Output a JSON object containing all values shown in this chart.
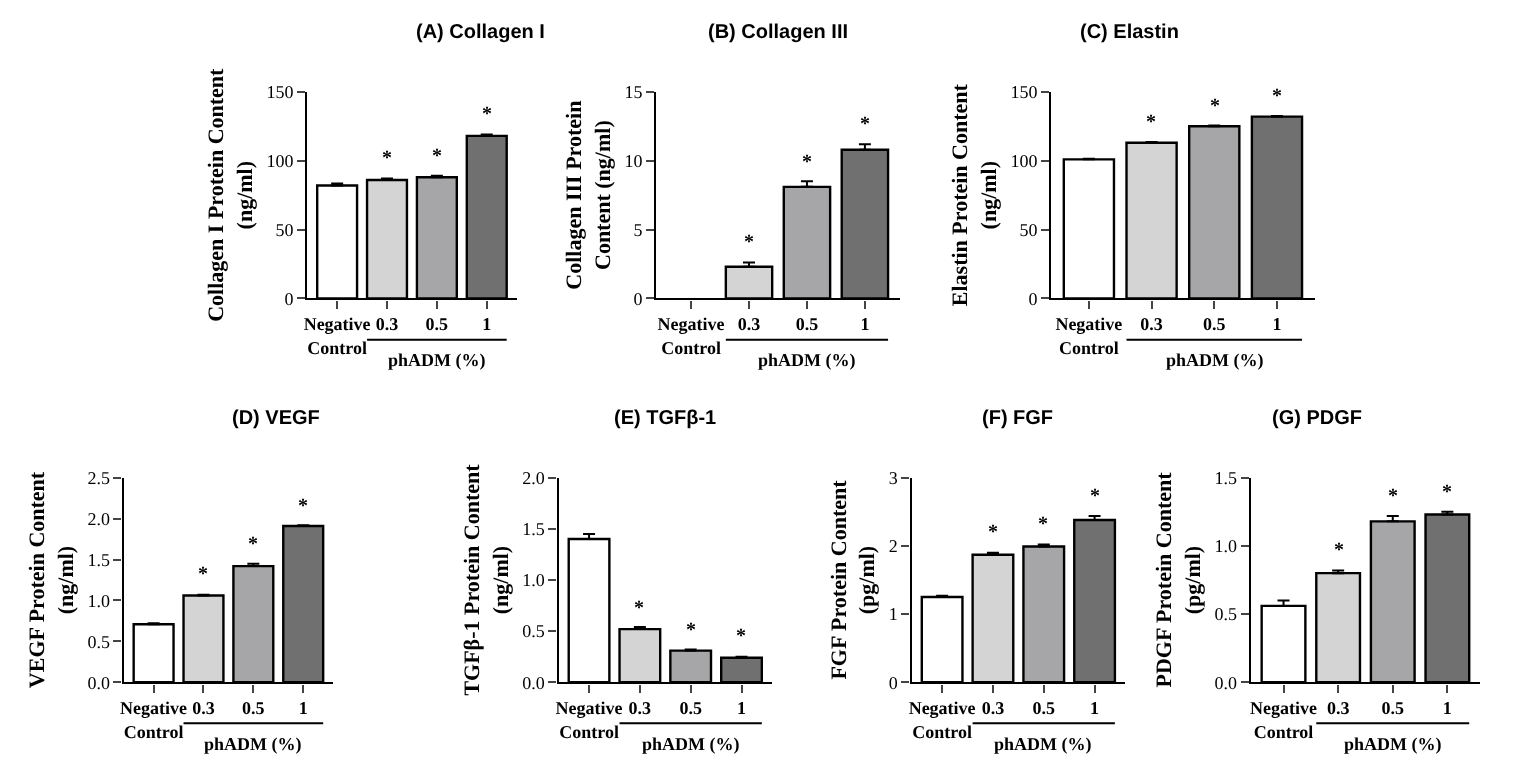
{
  "chart_data": [
    {
      "type": "bar",
      "title": "(A) Collagen I",
      "ylabel": "Collagen I Protein Content\n(ng/ml)",
      "xlabel": "phADM (%)",
      "categories": [
        "Negative\nControl",
        "0.3",
        "0.5",
        "1"
      ],
      "values": [
        82,
        86,
        88,
        118
      ],
      "errors": [
        1.5,
        1,
        1,
        1
      ],
      "colors": [
        "#ffffff",
        "#d4d4d4",
        "#a6a6a8",
        "#707070"
      ],
      "ylim": [
        0,
        150
      ],
      "yticks": [
        0,
        50,
        100,
        150
      ],
      "annotations": [
        {
          "text": "*",
          "x": "0.3",
          "y": 87
        },
        {
          "text": "*",
          "x": "0.5",
          "y": 89
        },
        {
          "text": "*",
          "x": "1",
          "y": 119
        }
      ]
    },
    {
      "type": "bar",
      "title": "(B) Collagen III",
      "ylabel": "Collagen III Protein\nContent (ng/ml)",
      "xlabel": "phADM (%)",
      "categories": [
        "Negative\nControl",
        "0.3",
        "0.5",
        "1"
      ],
      "values": [
        null,
        2.3,
        8.1,
        10.8
      ],
      "errors": [
        null,
        0.3,
        0.4,
        0.4
      ],
      "colors": [
        "#ffffff",
        "#d4d4d4",
        "#a6a6a8",
        "#707070"
      ],
      "ylim": [
        0,
        15
      ],
      "yticks": [
        0,
        5,
        10,
        15
      ],
      "annotations": [
        {
          "text": "*",
          "x": "0.3",
          "y": 2.6
        },
        {
          "text": "*",
          "x": "0.5",
          "y": 8.5
        },
        {
          "text": "*",
          "x": "1",
          "y": 11.2
        }
      ]
    },
    {
      "type": "bar",
      "title": "(C) Elastin",
      "ylabel": "Elastin Protein Content\n(ng/ml)",
      "xlabel": "phADM (%)",
      "categories": [
        "Negative\nControl",
        "0.3",
        "0.5",
        "1"
      ],
      "values": [
        101,
        113,
        125,
        132
      ],
      "errors": [
        0.5,
        0.5,
        0.5,
        0.5
      ],
      "colors": [
        "#ffffff",
        "#d4d4d4",
        "#a6a6a8",
        "#707070"
      ],
      "ylim": [
        0,
        150
      ],
      "yticks": [
        0,
        50,
        100,
        150
      ],
      "annotations": [
        {
          "text": "*",
          "x": "0.3",
          "y": 113.5
        },
        {
          "text": "*",
          "x": "0.5",
          "y": 125.5
        },
        {
          "text": "*",
          "x": "1",
          "y": 132.5
        }
      ]
    },
    {
      "type": "bar",
      "title": "(D) VEGF",
      "ylabel": "VEGF Protein Content\n(ng/ml)",
      "xlabel": "phADM (%)",
      "categories": [
        "Negative\nControl",
        "0.3",
        "0.5",
        "1"
      ],
      "values": [
        0.71,
        1.06,
        1.42,
        1.91
      ],
      "errors": [
        0.01,
        0.01,
        0.03,
        0.01
      ],
      "colors": [
        "#ffffff",
        "#d4d4d4",
        "#a6a6a8",
        "#707070"
      ],
      "ylim": [
        0,
        2.5
      ],
      "yticks": [
        {
          "value": 0,
          "label": "0.0"
        },
        0.5,
        {
          "value": 1,
          "label": "1.0"
        },
        1.5,
        {
          "value": 2,
          "label": "2.0"
        },
        2.5
      ],
      "annotations": [
        {
          "text": "*",
          "x": "0.3",
          "y": 1.07
        },
        {
          "text": "*",
          "x": "0.5",
          "y": 1.45
        },
        {
          "text": "*",
          "x": "1",
          "y": 1.92
        }
      ]
    },
    {
      "type": "bar",
      "title": "(E) TGFβ-1",
      "ylabel": "TGFβ-1 Protein Content\n(ng/ml)",
      "xlabel": "phADM (%)",
      "categories": [
        "Negative\nControl",
        "0.3",
        "0.5",
        "1"
      ],
      "values": [
        1.4,
        0.52,
        0.31,
        0.24
      ],
      "errors": [
        0.05,
        0.02,
        0.01,
        0.01
      ],
      "colors": [
        "#ffffff",
        "#d4d4d4",
        "#a6a6a8",
        "#707070"
      ],
      "ylim": [
        0,
        2
      ],
      "yticks": [
        {
          "value": 0,
          "label": "0.0"
        },
        0.5,
        {
          "value": 1,
          "label": "1.0"
        },
        1.5,
        {
          "value": 2,
          "label": "2.0"
        }
      ],
      "annotations": [
        {
          "text": "*",
          "x": "0.3",
          "y": 0.54
        },
        {
          "text": "*",
          "x": "0.5",
          "y": 0.32
        },
        {
          "text": "*",
          "x": "1",
          "y": 0.25
        }
      ]
    },
    {
      "type": "bar",
      "title": "(F) FGF",
      "ylabel": "FGF Protein Content\n(pg/ml)",
      "xlabel": "phADM (%)",
      "categories": [
        "Negative\nControl",
        "0.3",
        "0.5",
        "1"
      ],
      "values": [
        1.25,
        1.87,
        1.99,
        2.38
      ],
      "errors": [
        0.02,
        0.03,
        0.03,
        0.06
      ],
      "colors": [
        "#ffffff",
        "#d4d4d4",
        "#a6a6a8",
        "#707070"
      ],
      "ylim": [
        0,
        3
      ],
      "yticks": [
        0,
        1,
        2,
        3
      ],
      "annotations": [
        {
          "text": "*",
          "x": "0.3",
          "y": 1.9
        },
        {
          "text": "*",
          "x": "0.5",
          "y": 2.02
        },
        {
          "text": "*",
          "x": "1",
          "y": 2.44
        }
      ]
    },
    {
      "type": "bar",
      "title": "(G) PDGF",
      "ylabel": "PDGF Protein Content\n(pg/ml)",
      "xlabel": "phADM (%)",
      "categories": [
        "Negative\nControl",
        "0.3",
        "0.5",
        "1"
      ],
      "values": [
        0.56,
        0.8,
        1.18,
        1.23
      ],
      "errors": [
        0.04,
        0.02,
        0.04,
        0.02
      ],
      "colors": [
        "#ffffff",
        "#d4d4d4",
        "#a6a6a8",
        "#707070"
      ],
      "ylim": [
        0,
        1.5
      ],
      "yticks": [
        {
          "value": 0,
          "label": "0.0"
        },
        0.5,
        {
          "value": 1,
          "label": "1.0"
        },
        1.5
      ],
      "annotations": [
        {
          "text": "*",
          "x": "0.3",
          "y": 0.82
        },
        {
          "text": "*",
          "x": "0.5",
          "y": 1.22
        },
        {
          "text": "*",
          "x": "1",
          "y": 1.25
        }
      ]
    }
  ]
}
